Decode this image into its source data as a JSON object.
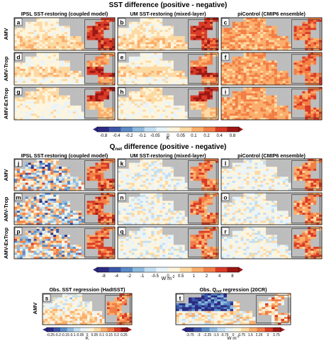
{
  "figure": {
    "sections": [
      {
        "title": "SST difference (positive - negative)",
        "column_titles": [
          "IPSL SST-restoring (coupled model)",
          "UM SST-restoring (mixed-layer)",
          "piControl (CMIP6 ensemble)"
        ],
        "row_labels": [
          "AMV",
          "AMV-Trop",
          "AMV-ExTrop"
        ],
        "panels": [
          "a",
          "b",
          "c",
          "d",
          "e",
          "f",
          "g",
          "h",
          "i"
        ],
        "colorbar": {
          "unit": "K",
          "ticks": [
            "-0.8",
            "-0.4",
            "-0.2",
            "-0.1",
            "-0.05",
            "0",
            "0.05",
            "0.1",
            "0.2",
            "0.4",
            "0.8"
          ]
        }
      },
      {
        "title": "Qnet difference (positive - negative)",
        "title_main": "Q",
        "title_sub": "net",
        "title_rest": " difference (positive - negative)",
        "column_titles": [
          "IPSL SST-restoring (coupled model)",
          "UM SST-restoring (mixed-layer)",
          "piControl (CMIP6 ensemble)"
        ],
        "row_labels": [
          "AMV",
          "AMV-Trop",
          "AMV-ExTrop"
        ],
        "panels": [
          "j",
          "k",
          "l",
          "m",
          "n",
          "o",
          "p",
          "q",
          "r"
        ],
        "colorbar": {
          "unit_main": "W m",
          "unit_sup": "-2",
          "ticks": [
            "-8",
            "-4",
            "-2",
            "-1",
            "-0.5",
            "0",
            "0.5",
            "1",
            "2",
            "4",
            "8"
          ]
        }
      }
    ],
    "obs": {
      "row_label": "AMV",
      "panels": [
        {
          "letter": "s",
          "title": "Obs. SST regression (HadISST)",
          "colorbar": {
            "unit": "K",
            "ticks": [
              "-0.25",
              "-0.2",
              "-0.15",
              "-0.1",
              "-0.05",
              "0",
              "0.05",
              "0.1",
              "0.15",
              "0.2",
              "0.25"
            ]
          }
        },
        {
          "letter": "t",
          "title": "Obs. Qnet regression (20CR)",
          "title_main": "Obs. Q",
          "title_sub": "net",
          "title_rest": " regression (20CR)",
          "colorbar": {
            "unit_main": "W m",
            "unit_sup": "-2",
            "ticks": [
              "-3.75",
              "-3",
              "-2.25",
              "-1.5",
              "-0.75",
              "0",
              "0.75",
              "1.5",
              "2.25",
              "3",
              "3.75"
            ]
          }
        }
      ]
    },
    "colors": {
      "land": "#bdbdbd",
      "scale": [
        "#2c2a82",
        "#3a56a8",
        "#5b8ac6",
        "#8db9dc",
        "#c3def0",
        "#e9f4fa",
        "#fff5dc",
        "#fdd9a2",
        "#fbae6c",
        "#f27e45",
        "#d93a26",
        "#9c1614"
      ]
    }
  },
  "chart_data": {
    "type": "heatmap",
    "title": "SST difference (positive - negative); Qnet difference (positive - negative)",
    "panels": [
      {
        "id": "a",
        "field": "SST difference",
        "model": "IPSL SST-restoring (coupled model)",
        "experiment": "AMV",
        "unit": "K",
        "pattern": "north_atlantic_warm",
        "pacific_mean": 0.15,
        "atlantic_mean": 0.6
      },
      {
        "id": "b",
        "field": "SST difference",
        "model": "UM SST-restoring (mixed-layer)",
        "experiment": "AMV",
        "unit": "K",
        "pattern": "north_atlantic_warm",
        "pacific_mean": 0.1,
        "atlantic_mean": 0.6
      },
      {
        "id": "c",
        "field": "SST difference",
        "model": "piControl (CMIP6 ensemble)",
        "experiment": "AMV",
        "unit": "K",
        "pattern": "basin_wide_warm",
        "pacific_mean": 0.3,
        "atlantic_mean": 0.6
      },
      {
        "id": "d",
        "field": "SST difference",
        "model": "IPSL SST-restoring (coupled model)",
        "experiment": "AMV-Trop",
        "unit": "K",
        "pattern": "tropical_warm",
        "pacific_mean": 0.1,
        "atlantic_mean": 0.5
      },
      {
        "id": "e",
        "field": "SST difference",
        "model": "UM SST-restoring (mixed-layer)",
        "experiment": "AMV-Trop",
        "unit": "K",
        "pattern": "tropical_warm",
        "pacific_mean": 0.05,
        "atlantic_mean": 0.5
      },
      {
        "id": "f",
        "field": "SST difference",
        "model": "piControl (CMIP6 ensemble)",
        "experiment": "AMV-Trop",
        "unit": "K",
        "pattern": "basin_wide_warm",
        "pacific_mean": 0.25,
        "atlantic_mean": 0.4
      },
      {
        "id": "g",
        "field": "SST difference",
        "model": "IPSL SST-restoring (coupled model)",
        "experiment": "AMV-ExTrop",
        "unit": "K",
        "pattern": "extratropical_warm",
        "pacific_mean": 0.05,
        "atlantic_mean": 0.5
      },
      {
        "id": "h",
        "field": "SST difference",
        "model": "UM SST-restoring (mixed-layer)",
        "experiment": "AMV-ExTrop",
        "unit": "K",
        "pattern": "extratropical_warm",
        "pacific_mean": 0.08,
        "atlantic_mean": 0.5
      },
      {
        "id": "i",
        "field": "SST difference",
        "model": "piControl (CMIP6 ensemble)",
        "experiment": "AMV-ExTrop",
        "unit": "K",
        "pattern": "basin_wide_warm",
        "pacific_mean": 0.2,
        "atlantic_mean": 0.4
      },
      {
        "id": "j",
        "field": "Qnet difference",
        "model": "IPSL SST-restoring (coupled model)",
        "experiment": "AMV",
        "unit": "W m-2",
        "pattern": "mixed_sign",
        "pacific_mean": 0.0,
        "atlantic_mean": 3.0
      },
      {
        "id": "k",
        "field": "Qnet difference",
        "model": "UM SST-restoring (mixed-layer)",
        "experiment": "AMV",
        "unit": "W m-2",
        "pattern": "weak_pacific",
        "pacific_mean": 0.0,
        "atlantic_mean": 4.0
      },
      {
        "id": "l",
        "field": "Qnet difference",
        "model": "piControl (CMIP6 ensemble)",
        "experiment": "AMV",
        "unit": "W m-2",
        "pattern": "weak_pacific",
        "pacific_mean": 0.0,
        "atlantic_mean": 1.5
      },
      {
        "id": "m",
        "field": "Qnet difference",
        "model": "IPSL SST-restoring (coupled model)",
        "experiment": "AMV-Trop",
        "unit": "W m-2",
        "pattern": "mixed_sign",
        "pacific_mean": 0.5,
        "atlantic_mean": 3.0
      },
      {
        "id": "n",
        "field": "Qnet difference",
        "model": "UM SST-restoring (mixed-layer)",
        "experiment": "AMV-Trop",
        "unit": "W m-2",
        "pattern": "weak_pacific",
        "pacific_mean": 0.0,
        "atlantic_mean": 3.0
      },
      {
        "id": "o",
        "field": "Qnet difference",
        "model": "piControl (CMIP6 ensemble)",
        "experiment": "AMV-Trop",
        "unit": "W m-2",
        "pattern": "weak_pacific",
        "pacific_mean": 0.0,
        "atlantic_mean": 1.5
      },
      {
        "id": "p",
        "field": "Qnet difference",
        "model": "IPSL SST-restoring (coupled model)",
        "experiment": "AMV-ExTrop",
        "unit": "W m-2",
        "pattern": "mixed_sign",
        "pacific_mean": 0.0,
        "atlantic_mean": 2.0
      },
      {
        "id": "q",
        "field": "Qnet difference",
        "model": "UM SST-restoring (mixed-layer)",
        "experiment": "AMV-ExTrop",
        "unit": "W m-2",
        "pattern": "weak_pacific",
        "pacific_mean": 0.0,
        "atlantic_mean": 2.0
      },
      {
        "id": "r",
        "field": "Qnet difference",
        "model": "piControl (CMIP6 ensemble)",
        "experiment": "AMV-ExTrop",
        "unit": "W m-2",
        "pattern": "weak_pacific",
        "pacific_mean": 0.0,
        "atlantic_mean": 1.0
      },
      {
        "id": "s",
        "field": "Obs. SST regression",
        "model": "HadISST",
        "experiment": "AMV",
        "unit": "K",
        "pattern": "obs_sst",
        "pacific_mean": 0.05,
        "atlantic_mean": 0.2
      },
      {
        "id": "t",
        "field": "Obs. Qnet regression",
        "model": "20CR",
        "experiment": "AMV",
        "unit": "W m-2",
        "pattern": "obs_qnet",
        "pacific_mean": -1.5,
        "atlantic_mean": 1.5
      }
    ]
  }
}
